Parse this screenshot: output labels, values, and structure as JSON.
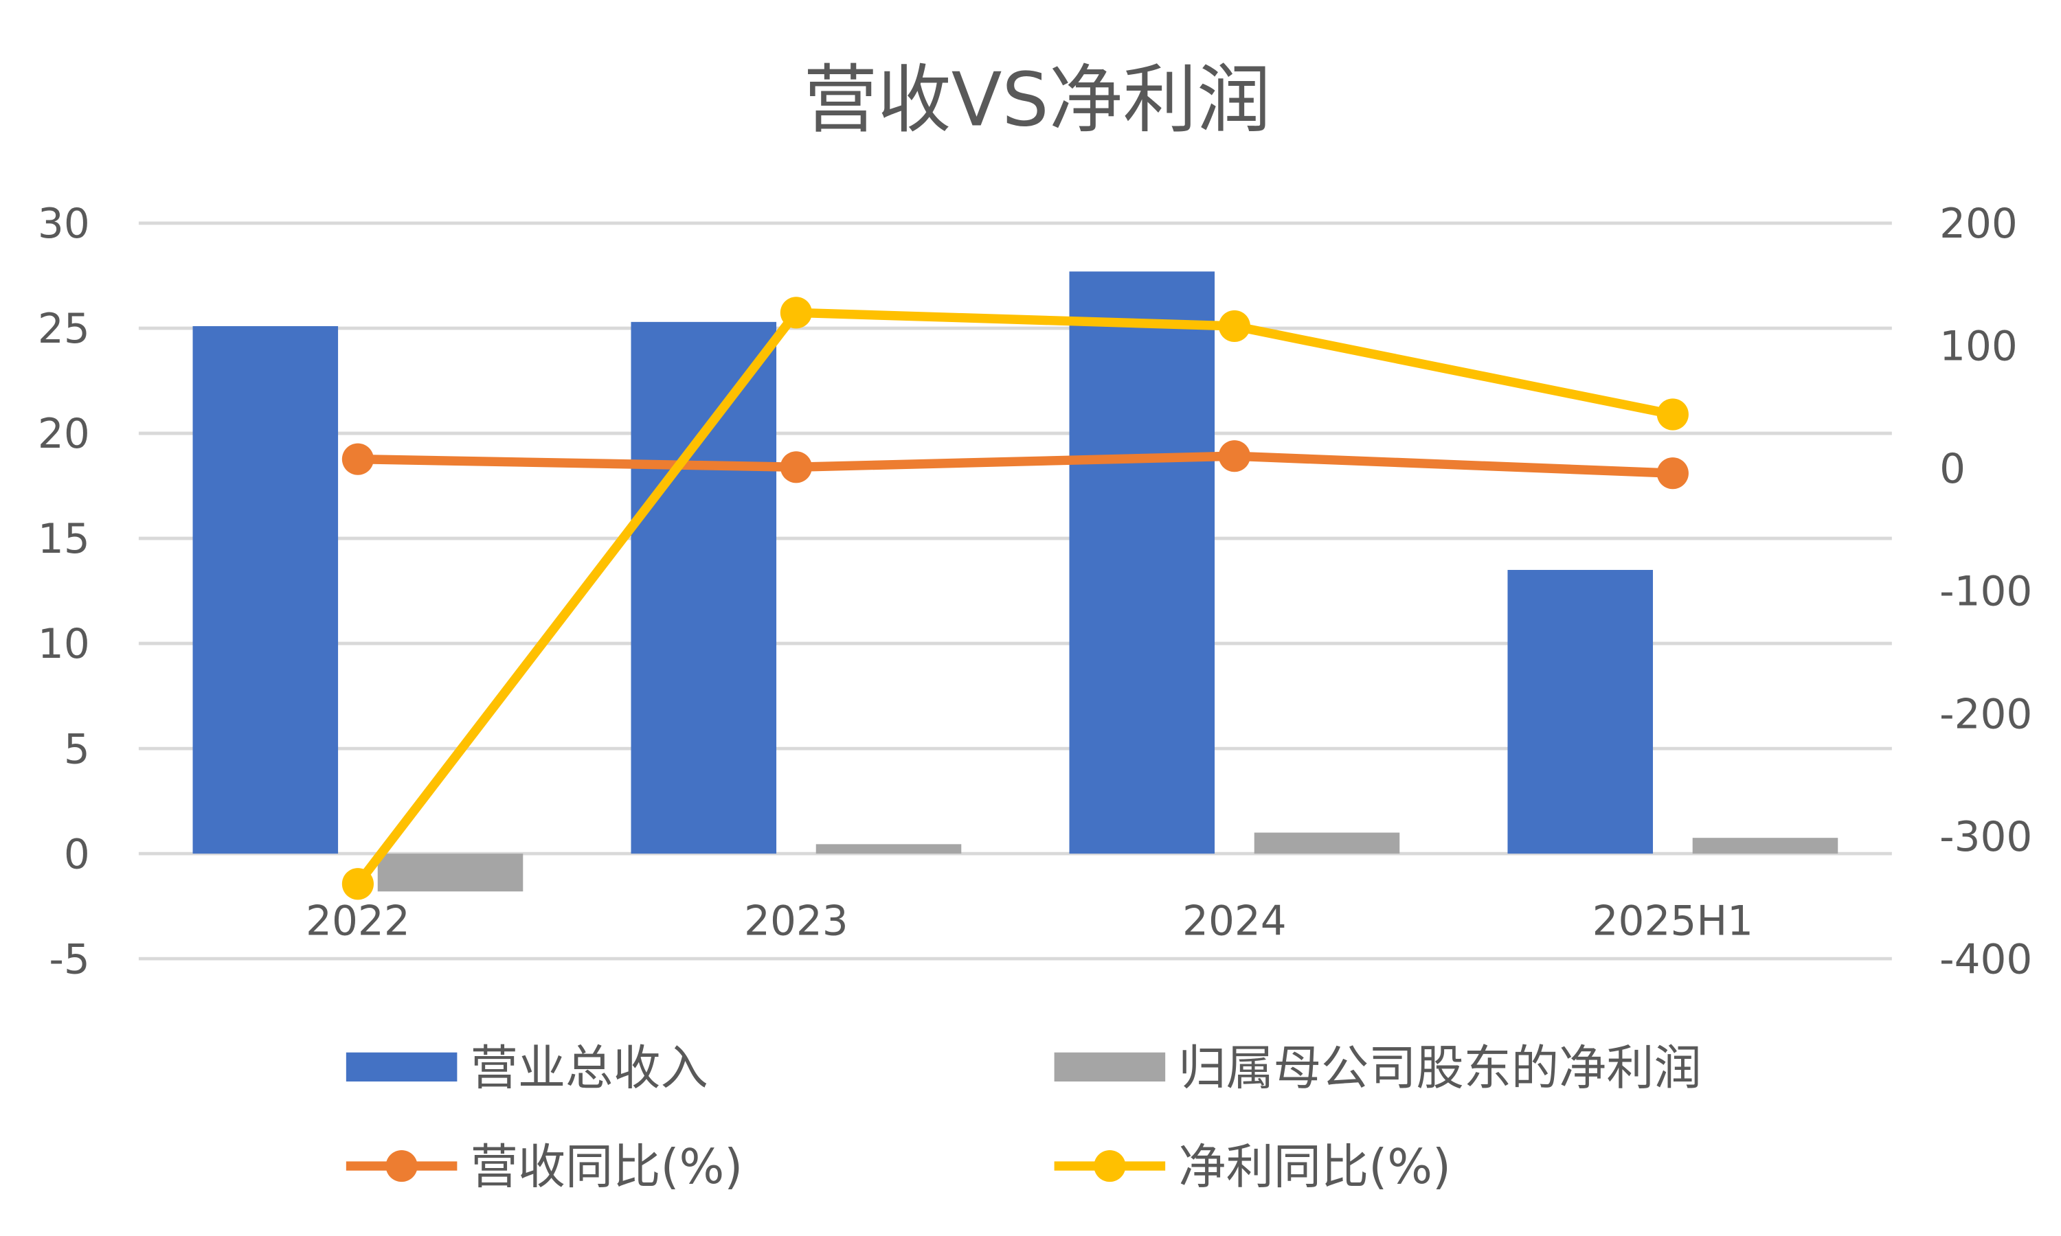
{
  "chart_data": {
    "type": "bar",
    "title": "营收VS净利润",
    "categories": [
      "2022",
      "2023",
      "2024",
      "2025H1"
    ],
    "left_axis": {
      "ylim": [
        -5,
        30
      ],
      "ticks": [
        "30",
        "25",
        "20",
        "15",
        "10",
        "5",
        "0",
        "-5"
      ],
      "tick_values": [
        30,
        25,
        20,
        15,
        10,
        5,
        0,
        -5
      ]
    },
    "right_axis": {
      "ylim": [
        -400,
        200
      ],
      "ticks": [
        "200",
        "100",
        "0",
        "-100",
        "-200",
        "-300",
        "-400"
      ],
      "tick_values": [
        200,
        100,
        0,
        -100,
        -200,
        -300,
        -400
      ]
    },
    "grid": true,
    "legend_position": "bottom",
    "series": [
      {
        "name": "营业总收入",
        "type": "bar",
        "axis": "left",
        "color": "#4472C4",
        "values": [
          25.1,
          25.3,
          27.7,
          13.5
        ]
      },
      {
        "name": "归属母公司股东的净利润",
        "type": "bar",
        "axis": "left",
        "color": "#A5A5A5",
        "values": [
          -1.8,
          0.45,
          1.0,
          0.75
        ]
      },
      {
        "name": "营收同比(%)",
        "type": "line",
        "axis": "right",
        "color": "#ED7D31",
        "values": [
          7.5,
          1,
          10,
          -4
        ]
      },
      {
        "name": "净利同比(%)",
        "type": "line",
        "axis": "right",
        "color": "#FFC000",
        "values": [
          -339,
          127,
          116,
          44
        ]
      }
    ]
  }
}
